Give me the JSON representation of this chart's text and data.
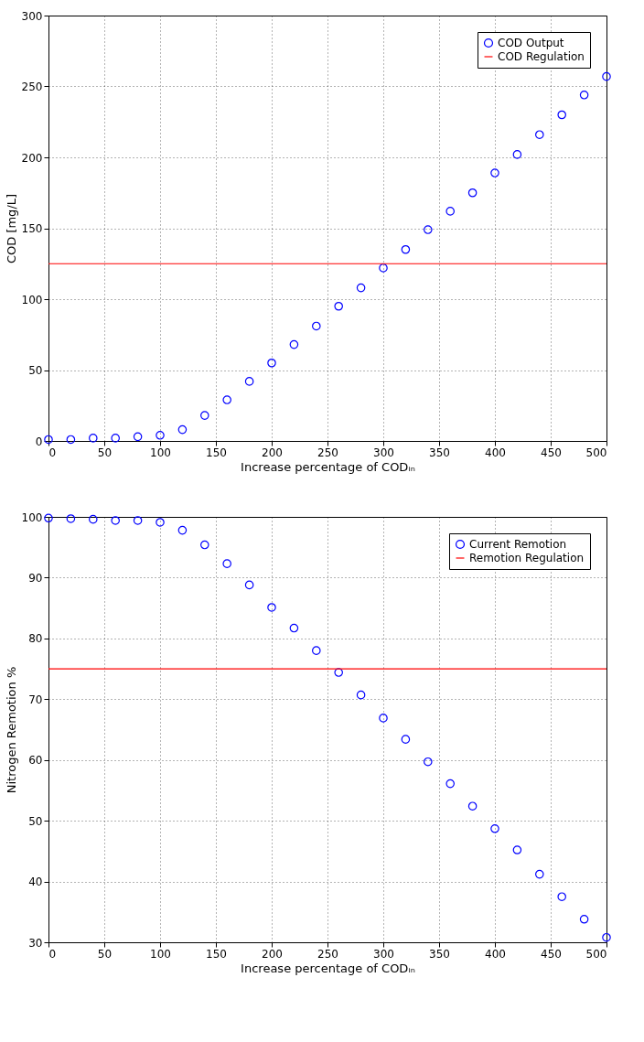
{
  "chart_data": [
    {
      "type": "scatter",
      "xlabel": "Increase percentage of CODᵢₙ",
      "ylabel": "COD [mg/L]",
      "x": [
        0,
        20,
        40,
        60,
        80,
        100,
        120,
        140,
        160,
        180,
        200,
        220,
        240,
        260,
        280,
        300,
        320,
        340,
        360,
        380,
        400,
        420,
        440,
        460,
        480,
        500
      ],
      "series": [
        {
          "name": "COD Output",
          "color": "#0000ff",
          "values": [
            1,
            1,
            2,
            2,
            3,
            4,
            8,
            18,
            29,
            42,
            55,
            68,
            81,
            95,
            108,
            122,
            135,
            149,
            162,
            175,
            189,
            202,
            216,
            230,
            244,
            257
          ]
        }
      ],
      "ref_lines": [
        {
          "axis": "y",
          "value": 125,
          "label": "COD Regulation",
          "color": "#ff0000"
        }
      ],
      "xlim": [
        0,
        500
      ],
      "xticks": [
        0,
        50,
        100,
        150,
        200,
        250,
        300,
        350,
        400,
        450,
        500
      ],
      "ylim": [
        0,
        300
      ],
      "yticks": [
        0,
        50,
        100,
        150,
        200,
        250,
        300
      ],
      "grid": true,
      "legend": "top right",
      "marker": "circle"
    },
    {
      "type": "scatter",
      "xlabel": "Increase percentage of CODᵢₙ",
      "ylabel": "Nitrogen Remotion %",
      "x": [
        0,
        20,
        40,
        60,
        80,
        100,
        120,
        140,
        160,
        180,
        200,
        220,
        240,
        260,
        280,
        300,
        320,
        340,
        360,
        380,
        400,
        420,
        440,
        460,
        480,
        500
      ],
      "series": [
        {
          "name": "Current Remotion",
          "color": "#0000ff",
          "values": [
            99.8,
            99.7,
            99.6,
            99.4,
            99.4,
            99.1,
            97.8,
            95.4,
            92.3,
            88.8,
            85.1,
            81.7,
            78.0,
            74.4,
            70.7,
            66.9,
            63.4,
            59.7,
            56.1,
            52.4,
            48.7,
            45.2,
            41.2,
            37.5,
            33.8,
            30.8
          ]
        }
      ],
      "ref_lines": [
        {
          "axis": "y",
          "value": 75,
          "label": "Remotion Regulation",
          "color": "#ff0000"
        }
      ],
      "xlim": [
        0,
        500
      ],
      "xticks": [
        0,
        50,
        100,
        150,
        200,
        250,
        300,
        350,
        400,
        450,
        500
      ],
      "ylim": [
        30,
        100
      ],
      "yticks": [
        30,
        40,
        50,
        60,
        70,
        80,
        90,
        100
      ],
      "grid": true,
      "legend": "top right",
      "marker": "circle"
    }
  ]
}
